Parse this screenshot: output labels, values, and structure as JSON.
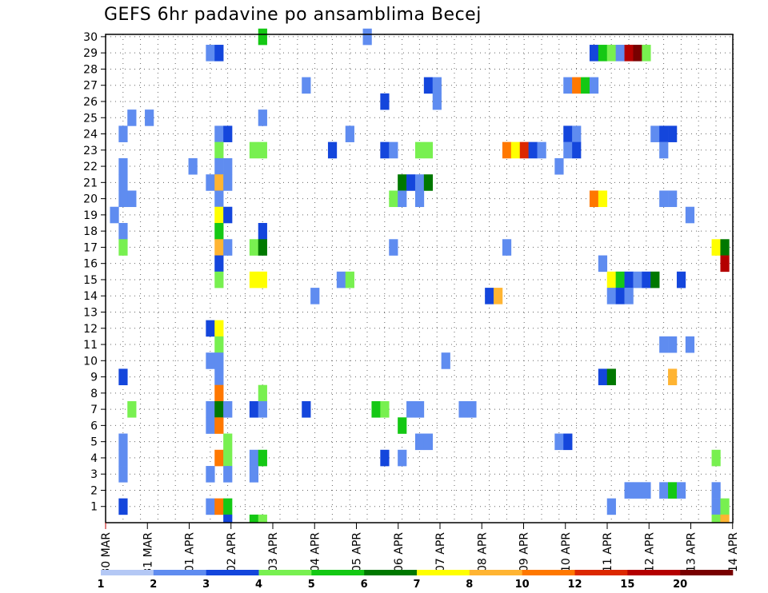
{
  "title": "GEFS 6hr padavine po ansamblima Becej",
  "chart_data": {
    "type": "heatmap",
    "title": "GEFS 6hr padavine po ansamblima Becej",
    "y_tick_labels": [
      "1",
      "2",
      "3",
      "4",
      "5",
      "6",
      "7",
      "8",
      "9",
      "10",
      "11",
      "12",
      "13",
      "14",
      "15",
      "16",
      "17",
      "18",
      "19",
      "20",
      "21",
      "22",
      "23",
      "24",
      "25",
      "26",
      "27",
      "28",
      "29",
      "30"
    ],
    "x_tick_labels": [
      "30 MAR",
      "31 MAR",
      "01 APR",
      "02 APR",
      "03 APR",
      "04 APR",
      "05 APR",
      "06 APR",
      "07 APR",
      "08 APR",
      "09 APR",
      "10 APR",
      "11 APR",
      "12 APR",
      "13 APR",
      "14 APR"
    ],
    "x_steps_per_day": 4,
    "x_range": [
      0,
      60
    ],
    "y_range": [
      0,
      30
    ],
    "grid": true,
    "colorbar": {
      "labels": [
        "1",
        "2",
        "3",
        "4",
        "5",
        "6",
        "7",
        "8",
        "10",
        "12",
        "15",
        "20"
      ],
      "colors": [
        "#b4c8f5",
        "#5f8cf0",
        "#1446dc",
        "#78f050",
        "#14c814",
        "#007800",
        "#ffff00",
        "#ffb432",
        "#ff7800",
        "#dc2800",
        "#b40000",
        "#780000"
      ]
    },
    "cells": [
      [
        12,
        29,
        1
      ],
      [
        13,
        29,
        2
      ],
      [
        18,
        30,
        4
      ],
      [
        30,
        30,
        1
      ],
      [
        56,
        29,
        2
      ],
      [
        57,
        29,
        4
      ],
      [
        58,
        29,
        3
      ],
      [
        59,
        29,
        1
      ],
      [
        60,
        29,
        10
      ],
      [
        61,
        29,
        11
      ],
      [
        62,
        29,
        3
      ],
      [
        37,
        27,
        2
      ],
      [
        38,
        27,
        1
      ],
      [
        53,
        27,
        1
      ],
      [
        54,
        27,
        8
      ],
      [
        55,
        27,
        4
      ],
      [
        56,
        27,
        1
      ],
      [
        23,
        27,
        1
      ],
      [
        38,
        26,
        1
      ],
      [
        32,
        26,
        2
      ],
      [
        3,
        25,
        1
      ],
      [
        5,
        25,
        1
      ],
      [
        18,
        25,
        1
      ],
      [
        2,
        24,
        1
      ],
      [
        13,
        24,
        1
      ],
      [
        14,
        24,
        2
      ],
      [
        28,
        24,
        1
      ],
      [
        53,
        24,
        2
      ],
      [
        54,
        24,
        1
      ],
      [
        63,
        24,
        1
      ],
      [
        64,
        24,
        2
      ],
      [
        65,
        24,
        2
      ],
      [
        13,
        23,
        3
      ],
      [
        17,
        23,
        3
      ],
      [
        18,
        23,
        3
      ],
      [
        26,
        23,
        2
      ],
      [
        32,
        23,
        2
      ],
      [
        33,
        23,
        1
      ],
      [
        36,
        23,
        3
      ],
      [
        37,
        23,
        3
      ],
      [
        46,
        23,
        8
      ],
      [
        47,
        23,
        6
      ],
      [
        48,
        23,
        9
      ],
      [
        49,
        23,
        2
      ],
      [
        50,
        23,
        1
      ],
      [
        53,
        23,
        1
      ],
      [
        54,
        23,
        2
      ],
      [
        64,
        23,
        1
      ],
      [
        2,
        22,
        1
      ],
      [
        10,
        22,
        1
      ],
      [
        13,
        22,
        1
      ],
      [
        14,
        22,
        1
      ],
      [
        52,
        22,
        1
      ],
      [
        2,
        21,
        1
      ],
      [
        12,
        21,
        1
      ],
      [
        13,
        21,
        7
      ],
      [
        14,
        21,
        1
      ],
      [
        34,
        21,
        5
      ],
      [
        35,
        21,
        2
      ],
      [
        36,
        21,
        1
      ],
      [
        37,
        21,
        5
      ],
      [
        2,
        20,
        1
      ],
      [
        3,
        20,
        1
      ],
      [
        13,
        20,
        1
      ],
      [
        33,
        20,
        3
      ],
      [
        34,
        20,
        1
      ],
      [
        36,
        20,
        1
      ],
      [
        56,
        20,
        8
      ],
      [
        57,
        20,
        6
      ],
      [
        64,
        20,
        1
      ],
      [
        65,
        20,
        1
      ],
      [
        1,
        19,
        1
      ],
      [
        13,
        19,
        6
      ],
      [
        14,
        19,
        2
      ],
      [
        67,
        19,
        1
      ],
      [
        2,
        18,
        1
      ],
      [
        13,
        18,
        4
      ],
      [
        18,
        18,
        2
      ],
      [
        2,
        17,
        3
      ],
      [
        13,
        17,
        7
      ],
      [
        14,
        17,
        1
      ],
      [
        17,
        17,
        3
      ],
      [
        18,
        17,
        5
      ],
      [
        33,
        17,
        1
      ],
      [
        46,
        17,
        1
      ],
      [
        70,
        17,
        6
      ],
      [
        71,
        17,
        5
      ],
      [
        13,
        16,
        2
      ],
      [
        57,
        16,
        1
      ],
      [
        71,
        16,
        10
      ],
      [
        13,
        15,
        3
      ],
      [
        17,
        15,
        6
      ],
      [
        18,
        15,
        6
      ],
      [
        27,
        15,
        1
      ],
      [
        28,
        15,
        3
      ],
      [
        58,
        15,
        6
      ],
      [
        59,
        15,
        4
      ],
      [
        60,
        15,
        2
      ],
      [
        61,
        15,
        1
      ],
      [
        62,
        15,
        2
      ],
      [
        63,
        15,
        5
      ],
      [
        66,
        15,
        2
      ],
      [
        24,
        14,
        1
      ],
      [
        44,
        14,
        2
      ],
      [
        45,
        14,
        7
      ],
      [
        58,
        14,
        1
      ],
      [
        59,
        14,
        2
      ],
      [
        60,
        14,
        1
      ],
      [
        12,
        12,
        2
      ],
      [
        13,
        12,
        6
      ],
      [
        13,
        11,
        3
      ],
      [
        64,
        11,
        1
      ],
      [
        65,
        11,
        1
      ],
      [
        67,
        11,
        1
      ],
      [
        12,
        10,
        1
      ],
      [
        13,
        10,
        1
      ],
      [
        39,
        10,
        1
      ],
      [
        2,
        9,
        2
      ],
      [
        13,
        9,
        1
      ],
      [
        57,
        9,
        2
      ],
      [
        58,
        9,
        5
      ],
      [
        65,
        9,
        7
      ],
      [
        13,
        8,
        8
      ],
      [
        18,
        8,
        3
      ],
      [
        3,
        7,
        3
      ],
      [
        12,
        7,
        1
      ],
      [
        13,
        7,
        5
      ],
      [
        14,
        7,
        1
      ],
      [
        17,
        7,
        2
      ],
      [
        18,
        7,
        1
      ],
      [
        23,
        7,
        2
      ],
      [
        31,
        7,
        4
      ],
      [
        32,
        7,
        3
      ],
      [
        35,
        7,
        1
      ],
      [
        36,
        7,
        1
      ],
      [
        41,
        7,
        1
      ],
      [
        42,
        7,
        1
      ],
      [
        12,
        6,
        1
      ],
      [
        13,
        6,
        8
      ],
      [
        34,
        6,
        4
      ],
      [
        2,
        5,
        1
      ],
      [
        14,
        5,
        3
      ],
      [
        36,
        5,
        1
      ],
      [
        37,
        5,
        1
      ],
      [
        52,
        5,
        1
      ],
      [
        53,
        5,
        2
      ],
      [
        2,
        4,
        1
      ],
      [
        13,
        4,
        8
      ],
      [
        14,
        4,
        3
      ],
      [
        17,
        4,
        1
      ],
      [
        18,
        4,
        4
      ],
      [
        32,
        4,
        2
      ],
      [
        34,
        4,
        1
      ],
      [
        70,
        4,
        3
      ],
      [
        2,
        3,
        1
      ],
      [
        12,
        3,
        1
      ],
      [
        14,
        3,
        1
      ],
      [
        17,
        3,
        1
      ],
      [
        60,
        2,
        1
      ],
      [
        61,
        2,
        1
      ],
      [
        62,
        2,
        1
      ],
      [
        64,
        2,
        1
      ],
      [
        65,
        2,
        4
      ],
      [
        66,
        2,
        1
      ],
      [
        70,
        2,
        1
      ],
      [
        2,
        1,
        2
      ],
      [
        12,
        1,
        1
      ],
      [
        13,
        1,
        8
      ],
      [
        14,
        1,
        4
      ],
      [
        58,
        1,
        1
      ],
      [
        70,
        1,
        1
      ],
      [
        71,
        1,
        3
      ],
      [
        14,
        0,
        2
      ],
      [
        17,
        0,
        4
      ],
      [
        18,
        0,
        3
      ],
      [
        70,
        0,
        3
      ],
      [
        71,
        0,
        7
      ]
    ]
  }
}
